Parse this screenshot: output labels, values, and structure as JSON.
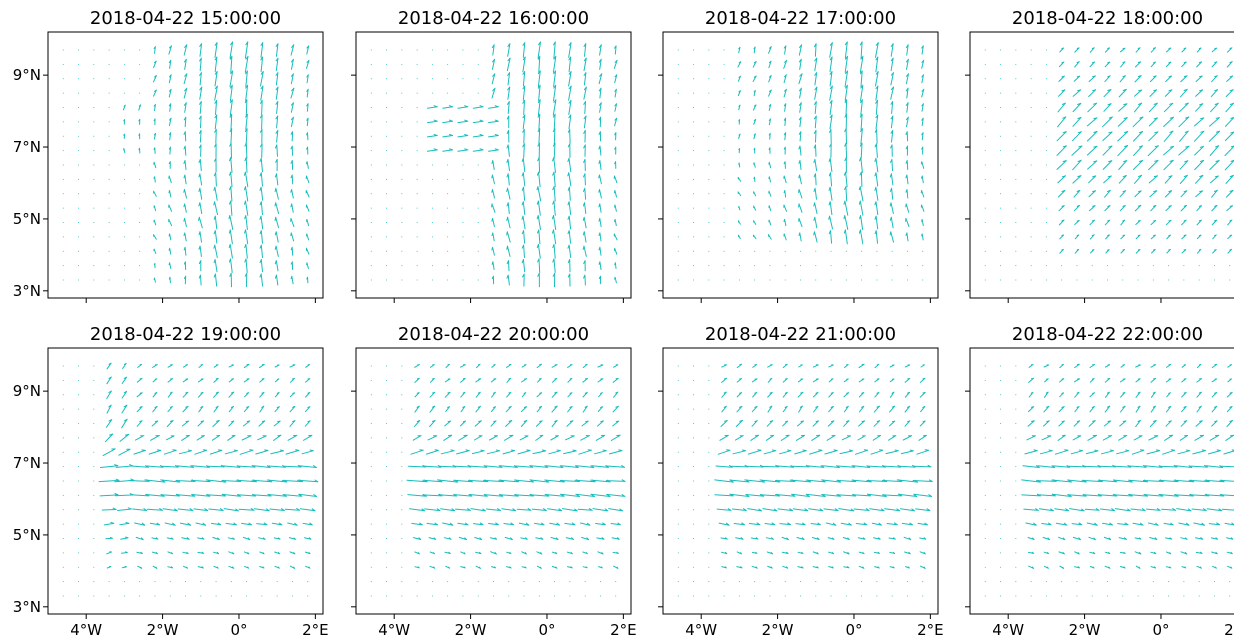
{
  "chart_data": {
    "type": "quiver",
    "grid": false,
    "xlim": [
      -5,
      2.2
    ],
    "ylim": [
      2.8,
      10.2
    ],
    "x_ticks": [
      -4,
      -2,
      0,
      2
    ],
    "x_tick_labels": [
      "4°W",
      "2°W",
      "0°",
      "2°E"
    ],
    "y_ticks": [
      3,
      5,
      7,
      9
    ],
    "y_tick_labels": [
      "3°N",
      "5°N",
      "7°N",
      "9°N"
    ],
    "arrow_color": "#17bdbd",
    "panels": [
      {
        "title": "2018-04-22 15:00:00"
      },
      {
        "title": "2018-04-22 16:00:00"
      },
      {
        "title": "2018-04-22 17:00:00"
      },
      {
        "title": "2018-04-22 18:00:00"
      },
      {
        "title": "2018-04-22 19:00:00"
      },
      {
        "title": "2018-04-22 20:00:00"
      },
      {
        "title": "2018-04-22 21:00:00"
      },
      {
        "title": "2018-04-22 22:00:00"
      }
    ]
  }
}
